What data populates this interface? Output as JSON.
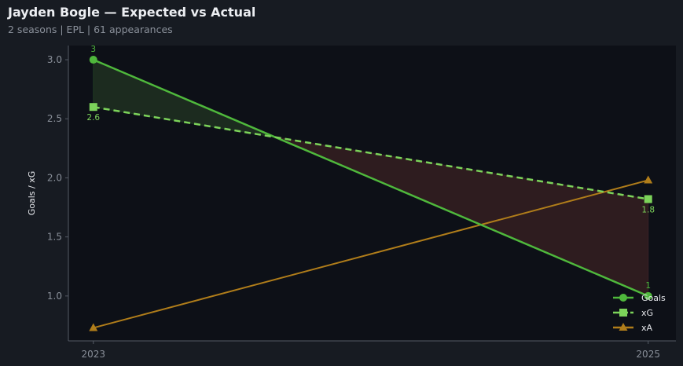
{
  "title": "Jayden Bogle — Expected vs Actual",
  "subtitle": "2 seasons | EPL | 61 appearances",
  "chart_data": {
    "type": "line",
    "title": "Jayden Bogle — Expected vs Actual",
    "xlabel": "",
    "ylabel": "Goals / xG",
    "x": [
      2023,
      2025
    ],
    "x_tick_labels": [
      "2023",
      "2025"
    ],
    "y_ticks": [
      1.0,
      1.5,
      2.0,
      2.5,
      3.0
    ],
    "y_tick_labels": [
      "1.0",
      "1.5",
      "2.0",
      "2.5",
      "3.0"
    ],
    "ylim": [
      0.62,
      3.12
    ],
    "xlim": [
      2022.91,
      2025.1
    ],
    "grid": false,
    "legend": "bottom-right",
    "series": [
      {
        "name": "Goals",
        "values": [
          3,
          1
        ],
        "data_labels": [
          "3",
          "1"
        ],
        "color": "#4fb83c",
        "style": "solid",
        "marker": "circle"
      },
      {
        "name": "xG",
        "values": [
          2.6,
          1.82
        ],
        "data_labels": [
          "2.6",
          "1.8"
        ],
        "color": "#7cd35a",
        "style": "dashed",
        "marker": "square"
      },
      {
        "name": "xA",
        "values": [
          0.73,
          1.98
        ],
        "color": "#b07d1a",
        "style": "solid",
        "marker": "triangle"
      }
    ],
    "fill_colors": {
      "overperform": "#1c2b1f",
      "underperform": "#2e1c1f"
    }
  }
}
